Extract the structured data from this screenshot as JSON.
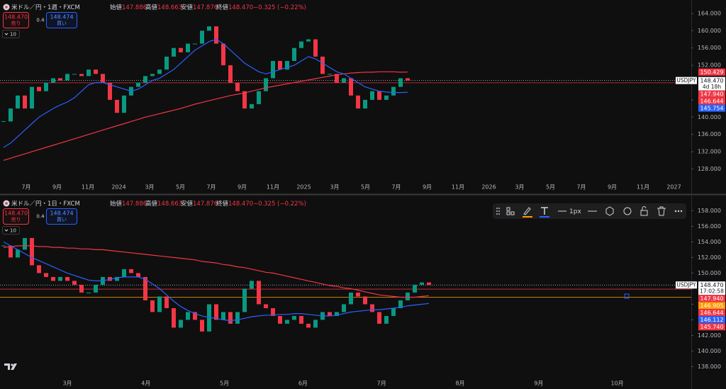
{
  "panes": [
    {
      "symbol": "米ドル／円・1週・FXCM",
      "ohlc": [
        {
          "label": "始値",
          "value": "147.886"
        },
        {
          "label": "高値",
          "value": "148.663"
        },
        {
          "label": "安値",
          "value": "147.876"
        },
        {
          "label": "終値",
          "value": "148.470"
        }
      ],
      "change": "−0.325 (−0.22%)",
      "sell": {
        "price": "148.470",
        "label": "売り"
      },
      "spread": "0.4",
      "buy": {
        "price": "148.474",
        "label": "買い"
      },
      "indicators": "10"
    },
    {
      "symbol": "米ドル／円・1日・FXCM",
      "ohlc": [
        {
          "label": "始値",
          "value": "147.886"
        },
        {
          "label": "高値",
          "value": "148.663"
        },
        {
          "label": "安値",
          "value": "147.876"
        },
        {
          "label": "終値",
          "value": "148.470"
        }
      ],
      "change": "−0.325 (−0.22%)",
      "sell": {
        "price": "148.470",
        "label": "売り"
      },
      "spread": "0.4",
      "buy": {
        "price": "148.474",
        "label": "買い"
      },
      "indicators": "10"
    }
  ],
  "toolbar": {
    "width_label": "1px"
  },
  "chart_data": [
    {
      "type": "candlestick",
      "up_color": "#089981",
      "down_color": "#f23645",
      "x_labels": [
        "7月",
        "9月",
        "11月",
        "2024",
        "3月",
        "5月",
        "7月",
        "9月",
        "11月",
        "2025",
        "3月",
        "5月",
        "7月",
        "9月",
        "11月",
        "2026",
        "3月",
        "5月",
        "7月",
        "9月",
        "11月",
        "2027"
      ],
      "values": [
        139,
        142,
        145,
        142,
        147,
        146,
        148,
        149,
        148.5,
        150,
        150,
        149.5,
        151,
        150,
        148,
        144,
        141,
        145,
        147,
        148,
        149.5,
        150,
        151,
        154,
        156,
        155,
        157,
        157,
        160,
        161,
        157,
        152,
        148,
        146,
        142,
        143,
        146,
        149,
        153,
        151,
        153,
        156,
        157.5,
        158,
        154,
        150,
        150,
        148,
        149,
        145,
        142,
        144,
        146,
        144,
        145,
        147,
        149,
        148.47
      ],
      "ma": [
        {
          "color": "#f23645",
          "values": [
            130,
            130.5,
            131,
            131.5,
            132,
            132.5,
            133,
            133.5,
            134,
            134.5,
            135,
            135.5,
            136,
            136.5,
            137,
            137.5,
            138,
            138.5,
            139,
            139.5,
            140,
            140.4,
            140.8,
            141.2,
            141.6,
            142,
            142.5,
            143,
            143.4,
            143.8,
            144.2,
            144.6,
            145,
            145.3,
            145.6,
            146,
            146.4,
            146.8,
            147.1,
            147.4,
            147.7,
            148,
            148.3,
            148.6,
            148.9,
            149.2,
            149.5,
            149.8,
            150,
            150.2,
            150.3,
            150.4,
            150.4,
            150.5,
            150.5,
            150.5,
            150.4,
            150.43
          ]
        },
        {
          "color": "#2962ff",
          "values": [
            133,
            134,
            135.5,
            137,
            138.5,
            140,
            141,
            142,
            142.8,
            143.5,
            144.5,
            146,
            147.5,
            148,
            148,
            147.5,
            147,
            146.5,
            146,
            146.5,
            147.5,
            148.5,
            149,
            150,
            151,
            152.5,
            154,
            155.5,
            156.5,
            157.5,
            158,
            157,
            155.5,
            154,
            152.5,
            151.5,
            150.5,
            150,
            150.5,
            151,
            151.5,
            152,
            153,
            154,
            153.5,
            152.5,
            151.5,
            150.5,
            150,
            149,
            148,
            147,
            146.5,
            146,
            145.8,
            145.7,
            145.7,
            145.75
          ]
        }
      ],
      "ylim": [
        125.3,
        167.1
      ],
      "yticks": [
        {
          "value": 128,
          "label": "128.000"
        },
        {
          "value": 132,
          "label": "132.000"
        },
        {
          "value": 136,
          "label": "136.000"
        },
        {
          "value": 140,
          "label": "140.000"
        },
        {
          "value": 144,
          "label": "144.000"
        },
        {
          "value": 148,
          "label": "148.000"
        },
        {
          "value": 152,
          "label": "152.000"
        },
        {
          "value": 156,
          "label": "156.000"
        },
        {
          "value": 160,
          "label": "160.000"
        },
        {
          "value": 164,
          "label": "164.000"
        }
      ],
      "markers": [
        {
          "value": 150.429,
          "label": "150.429",
          "color": "#f23645"
        },
        {
          "value": 148.47,
          "label": "148.470",
          "color": "#ffffff",
          "symbol": "USDJPY",
          "sub": "4d 18h",
          "line": "dotted"
        },
        {
          "value": 147.94,
          "label": "147.940",
          "color": "#f23645",
          "line": "solid"
        },
        {
          "value": 146.644,
          "label": "146.644",
          "color": "#f23645"
        },
        {
          "value": 145.754,
          "label": "145.754",
          "color": "#2962ff"
        }
      ]
    },
    {
      "type": "candlestick",
      "up_color": "#089981",
      "down_color": "#f23645",
      "x_labels": [
        "3月",
        "4月",
        "5月",
        "6月",
        "7月",
        "8月",
        "9月",
        "10月"
      ],
      "values": [
        153.5,
        152,
        153,
        154.5,
        151,
        150,
        149.5,
        149,
        149.5,
        149,
        148.5,
        147.5,
        147.5,
        148.5,
        149.5,
        149,
        149.5,
        150.5,
        150,
        149.5,
        146.5,
        145,
        147,
        145.5,
        143,
        144,
        145,
        144,
        142.5,
        146,
        144,
        145,
        143.5,
        145,
        148,
        149,
        146,
        145.5,
        144.5,
        143.5,
        144,
        144.5,
        143.5,
        143,
        144,
        145,
        144.5,
        145,
        146,
        147.5,
        147,
        146,
        145,
        143.5,
        144.5,
        145.5,
        146.5,
        147.5,
        148.5,
        148.8,
        148.47
      ],
      "ma": [
        {
          "color": "#f23645",
          "values": [
            153.3,
            153.4,
            153.5,
            153.5,
            153.5,
            153.4,
            153.4,
            153.3,
            153.3,
            153.2,
            153.2,
            153.1,
            153.1,
            153,
            153,
            152.9,
            152.8,
            152.7,
            152.6,
            152.5,
            152.4,
            152.3,
            152.2,
            152.1,
            152,
            151.9,
            151.8,
            151.7,
            151.5,
            151.4,
            151.3,
            151.1,
            151,
            150.8,
            150.7,
            150.5,
            150.3,
            150.1,
            150,
            149.8,
            149.6,
            149.4,
            149.2,
            149,
            148.8,
            148.6,
            148.4,
            148.3,
            148.1,
            148,
            147.8,
            147.6,
            147.4,
            147.2,
            147.1,
            147,
            146.9,
            146.9,
            146.9,
            147,
            147.1
          ]
        },
        {
          "color": "#2962ff",
          "values": [
            154,
            153.5,
            153,
            152.5,
            152,
            151.6,
            151.2,
            150.8,
            150.4,
            150,
            149.7,
            149.4,
            149.1,
            149,
            149,
            149.2,
            149.4,
            149.5,
            149.5,
            149.5,
            149.2,
            148.6,
            148,
            147.2,
            146.4,
            145.7,
            145.2,
            144.8,
            144.5,
            144.3,
            144.2,
            144,
            143.9,
            144,
            144.2,
            144.4,
            144.5,
            144.6,
            144.6,
            144.7,
            144.7,
            144.8,
            144.8,
            144.7,
            144.6,
            144.5,
            144.5,
            144.6,
            144.8,
            145,
            145.1,
            145.2,
            145.3,
            145.3,
            145.4,
            145.5,
            145.6,
            145.8,
            145.9,
            146,
            146.1
          ]
        }
      ],
      "ylim": [
        136.4,
        159.4
      ],
      "yticks": [
        {
          "value": 138,
          "label": "138.000"
        },
        {
          "value": 140,
          "label": "140.000"
        },
        {
          "value": 142,
          "label": "142.000"
        },
        {
          "value": 144,
          "label": "144.000"
        },
        {
          "value": 146,
          "label": "146.000"
        },
        {
          "value": 148,
          "label": "148.000"
        },
        {
          "value": 150,
          "label": "150.000"
        },
        {
          "value": 152,
          "label": "152.000"
        },
        {
          "value": 154,
          "label": "154.000"
        },
        {
          "value": 156,
          "label": "156.000"
        },
        {
          "value": 158,
          "label": "158.000"
        }
      ],
      "markers": [
        {
          "value": 148.47,
          "label": "148.470",
          "color": "#ffffff",
          "symbol": "USDJPY",
          "sub": "17:02:58",
          "line": "dotted"
        },
        {
          "value": 147.94,
          "label": "147.940",
          "color": "#f23645",
          "line": "solid"
        },
        {
          "value": 146.905,
          "label": "146.905",
          "color": "#ff9800",
          "line": "solid"
        },
        {
          "value": 146.644,
          "label": "146.644",
          "color": "#f23645"
        },
        {
          "value": 146.112,
          "label": "146.112",
          "color": "#2962ff"
        },
        {
          "value": 145.74,
          "label": "145.740",
          "color": "#f23645"
        }
      ]
    }
  ]
}
